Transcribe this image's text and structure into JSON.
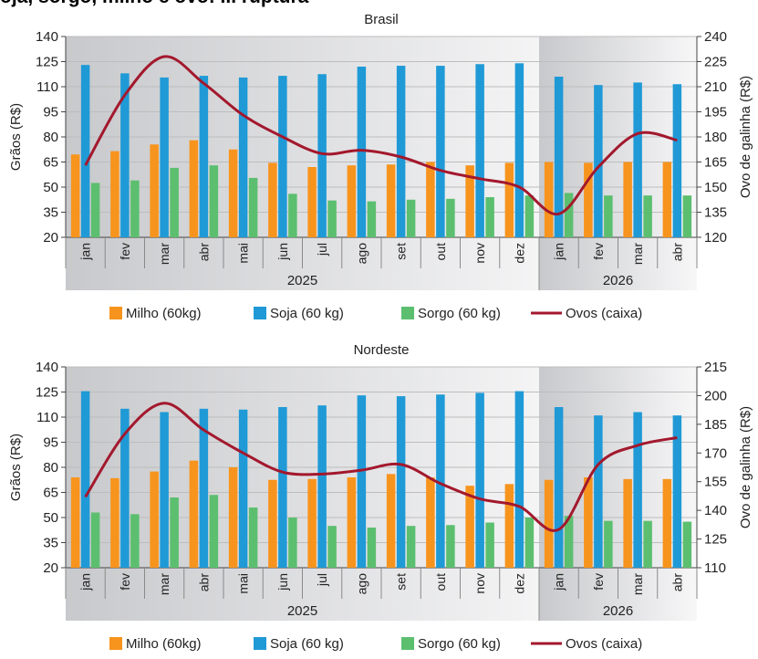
{
  "page_title": "Soja, sorgo, milho e ovo: ... ruptura",
  "colors": {
    "milho": "#f7941d",
    "soja": "#1f9ad6",
    "sorgo": "#5cbf6f",
    "ovos": "#a3182d",
    "grid": "#bdbdbd",
    "band_dark": "#c8c9cc",
    "band_light": "#f4f4f5"
  },
  "chart_data": [
    {
      "type": "bar",
      "title": "Brasil",
      "ylabel": "Grãos (R$)",
      "y2label": "Ovo de galinha (R$)",
      "ylim": [
        20,
        140
      ],
      "y2lim": [
        120,
        240
      ],
      "yticks": [
        "140",
        "125",
        "110",
        "95",
        "80",
        "65",
        "50",
        "35",
        "20"
      ],
      "y2ticks": [
        "240",
        "225",
        "210",
        "195",
        "180",
        "165",
        "150",
        "135",
        "120"
      ],
      "categories": [
        "jan",
        "fev",
        "mar",
        "abr",
        "mai",
        "jun",
        "jul",
        "ago",
        "set",
        "out",
        "nov",
        "dez",
        "jan",
        "fev",
        "mar",
        "abr"
      ],
      "years": [
        "2025",
        "2026"
      ],
      "grid": true,
      "legend_position": "bottom",
      "series": [
        {
          "name": "Milho (60kg)",
          "kind": "bar",
          "axis": "left",
          "values": [
            69.5,
            71.5,
            75.5,
            78,
            72.5,
            64.5,
            62,
            63,
            63.5,
            65,
            63,
            64.5,
            65,
            64.5,
            65,
            65
          ]
        },
        {
          "name": "Soja (60 kg)",
          "kind": "bar",
          "axis": "left",
          "values": [
            123,
            118,
            115.5,
            116.5,
            115.5,
            116.5,
            117.5,
            122,
            122.5,
            122.5,
            123.5,
            124,
            116,
            111,
            112.5,
            111.5
          ]
        },
        {
          "name": "Sorgo (60 kg)",
          "kind": "bar",
          "axis": "left",
          "values": [
            52.5,
            54,
            61.5,
            63,
            55.5,
            46,
            42,
            41.5,
            42.5,
            43,
            44,
            45,
            46.5,
            45,
            45,
            45
          ]
        },
        {
          "name": "Ovos (caixa)",
          "kind": "line",
          "axis": "right",
          "values": [
            163,
            205,
            228,
            212,
            193,
            180,
            170,
            172,
            168,
            160,
            155,
            150,
            134,
            162,
            182,
            178
          ]
        }
      ]
    },
    {
      "type": "bar",
      "title": "Nordeste",
      "ylabel": "Grãos (R$)",
      "y2label": "Ovo de galinha (R$)",
      "ylim": [
        20,
        140
      ],
      "y2lim": [
        110,
        215
      ],
      "yticks": [
        "140",
        "125",
        "110",
        "95",
        "80",
        "65",
        "50",
        "35",
        "20"
      ],
      "y2ticks": [
        "215",
        "200",
        "185",
        "170",
        "155",
        "140",
        "125",
        "110"
      ],
      "categories": [
        "jan",
        "fev",
        "mar",
        "abr",
        "mai",
        "jun",
        "jul",
        "ago",
        "set",
        "out",
        "nov",
        "dez",
        "jan",
        "fev",
        "mar",
        "abr"
      ],
      "years": [
        "2025",
        "2026"
      ],
      "grid": true,
      "legend_position": "bottom",
      "series": [
        {
          "name": "Milho (60kg)",
          "kind": "bar",
          "axis": "left",
          "values": [
            74,
            73.5,
            77.5,
            84,
            80,
            72.5,
            73,
            74,
            76,
            74,
            69,
            70,
            72.5,
            74,
            73,
            73
          ]
        },
        {
          "name": "Soja (60 kg)",
          "kind": "bar",
          "axis": "left",
          "values": [
            125.5,
            115,
            113,
            115,
            114.5,
            116,
            117,
            123,
            122.5,
            123.5,
            124.5,
            125.5,
            116,
            111,
            113,
            111
          ]
        },
        {
          "name": "Sorgo (60 kg)",
          "kind": "bar",
          "axis": "left",
          "values": [
            53,
            52,
            62,
            63.5,
            56,
            50,
            45,
            44,
            45,
            45.5,
            47,
            50,
            51,
            48,
            48,
            47.5
          ]
        },
        {
          "name": "Ovos (caixa)",
          "kind": "line",
          "axis": "right",
          "values": [
            147,
            180,
            196,
            182,
            170,
            160,
            159,
            161,
            164,
            154,
            146,
            142,
            130,
            164,
            174,
            178
          ]
        }
      ]
    }
  ]
}
